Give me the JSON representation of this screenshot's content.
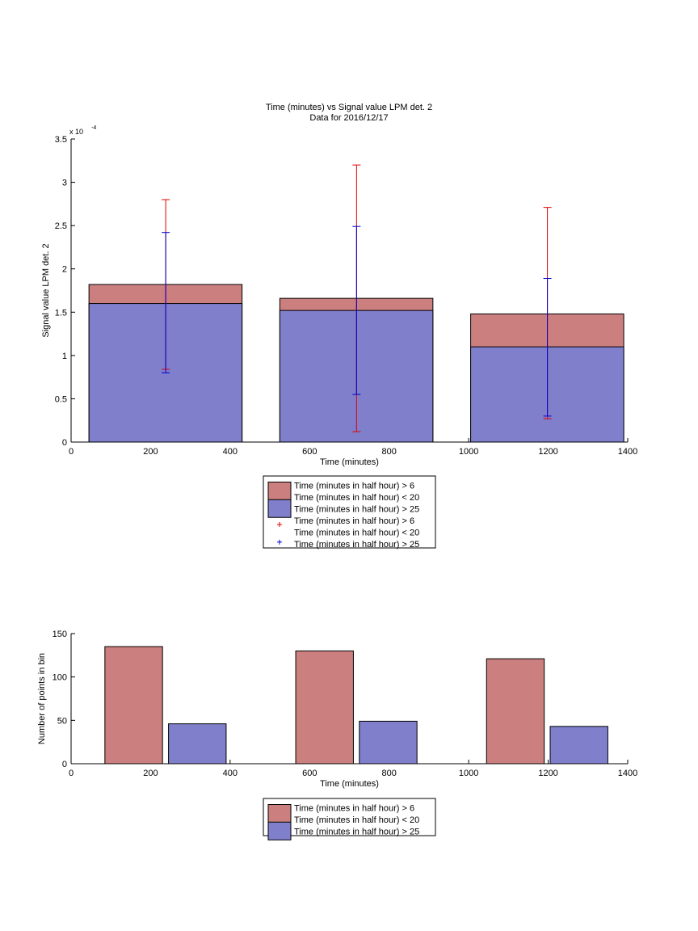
{
  "chart_data": [
    {
      "type": "bar",
      "title": "Time (minutes) vs Signal value LPM det. 2",
      "subtitle": "Data for 2016/12/17",
      "xlabel": "Time (minutes)",
      "ylabel": "Signal value LPM det. 2",
      "y_exponent_label": "x 10",
      "y_exponent_power": "-4",
      "xlim": [
        0,
        1400
      ],
      "ylim": [
        0,
        3.5
      ],
      "x_ticks": [
        0,
        200,
        400,
        600,
        800,
        1000,
        1200,
        1400
      ],
      "y_ticks": [
        "0",
        "0.5",
        "1",
        "1.5",
        "2",
        "2.5",
        "3",
        "3.5"
      ],
      "y_tick_values": [
        0,
        0.5,
        1,
        1.5,
        2,
        2.5,
        3,
        3.5
      ],
      "grid": false,
      "legend_position": "below",
      "bars": [
        {
          "x_start": 45,
          "x_end": 430,
          "series1": 1.82,
          "series2": 1.6
        },
        {
          "x_start": 525,
          "x_end": 910,
          "series1": 1.66,
          "series2": 1.52
        },
        {
          "x_start": 1005,
          "x_end": 1390,
          "series1": 1.48,
          "series2": 1.1
        }
      ],
      "error_bars": [
        {
          "series": 1,
          "x": 238,
          "center": 1.82,
          "low": 0.84,
          "high": 2.8
        },
        {
          "series": 2,
          "x": 238,
          "center": 1.6,
          "low": 0.8,
          "high": 2.42
        },
        {
          "series": 1,
          "x": 718,
          "center": 1.66,
          "low": 0.12,
          "high": 3.2
        },
        {
          "series": 2,
          "x": 718,
          "center": 1.52,
          "low": 0.55,
          "high": 2.49
        },
        {
          "series": 1,
          "x": 1198,
          "center": 1.48,
          "low": 0.27,
          "high": 2.71
        },
        {
          "series": 2,
          "x": 1198,
          "center": 1.1,
          "low": 0.3,
          "high": 1.89
        }
      ],
      "series_colors": {
        "series1": "#cc7f7f",
        "series2": "#7f7fcc",
        "err1": "#e00000",
        "err2": "#0000cc"
      },
      "legend": [
        {
          "kind": "patch",
          "color": "#cc7f7f",
          "lines": [
            "Time (minutes in half hour) > 6",
            "Time (minutes in half hour) < 20"
          ]
        },
        {
          "kind": "patch",
          "color": "#7f7fcc",
          "lines": [
            "Time (minutes in half hour) > 25"
          ]
        },
        {
          "kind": "marker",
          "color": "#e00000",
          "lines": [
            "Time (minutes in half hour) > 6",
            "Time (minutes in half hour) < 20"
          ]
        },
        {
          "kind": "marker",
          "color": "#0000cc",
          "lines": [
            "Time (minutes in half hour) > 25"
          ]
        }
      ]
    },
    {
      "type": "bar",
      "title": "",
      "xlabel": "Time (minutes)",
      "ylabel": "Number of points in bin",
      "xlim": [
        0,
        1400
      ],
      "ylim": [
        0,
        150
      ],
      "x_ticks": [
        0,
        200,
        400,
        600,
        800,
        1000,
        1200,
        1400
      ],
      "y_ticks": [
        "0",
        "50",
        "100",
        "150"
      ],
      "y_tick_values": [
        0,
        50,
        100,
        150
      ],
      "grid": false,
      "legend_position": "below",
      "bars": [
        {
          "series": 1,
          "x_start": 85,
          "x_end": 230,
          "value": 135
        },
        {
          "series": 2,
          "x_start": 245,
          "x_end": 390,
          "value": 46
        },
        {
          "series": 1,
          "x_start": 565,
          "x_end": 710,
          "value": 130
        },
        {
          "series": 2,
          "x_start": 725,
          "x_end": 870,
          "value": 49
        },
        {
          "series": 1,
          "x_start": 1045,
          "x_end": 1190,
          "value": 121
        },
        {
          "series": 2,
          "x_start": 1205,
          "x_end": 1350,
          "value": 43
        }
      ],
      "series_colors": {
        "series1": "#cc7f7f",
        "series2": "#7f7fcc"
      },
      "legend": [
        {
          "kind": "patch",
          "color": "#cc7f7f",
          "lines": [
            "Time (minutes in half hour) > 6",
            "Time (minutes in half hour) < 20"
          ]
        },
        {
          "kind": "patch",
          "color": "#7f7fcc",
          "lines": [
            "Time (minutes in half hour) > 25"
          ]
        }
      ]
    }
  ]
}
